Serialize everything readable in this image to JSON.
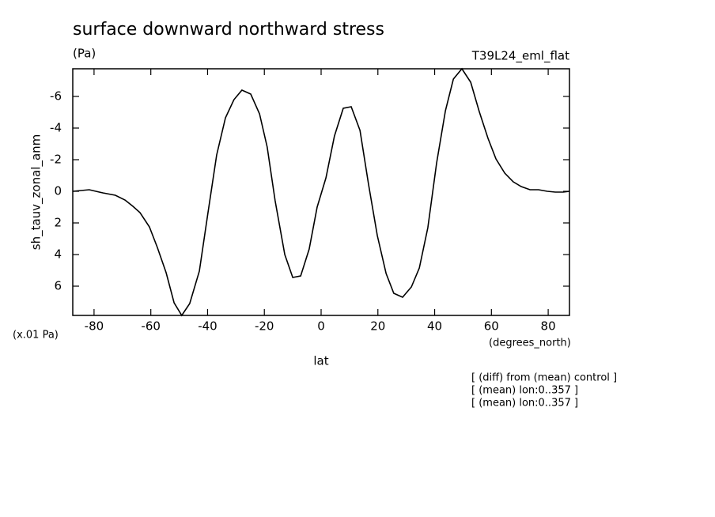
{
  "chart_data": {
    "type": "line",
    "title": "surface downward northward stress",
    "units": "(Pa)",
    "dataset": "T39L24_eml_flat",
    "y_label": "sh_tauv_zonal_anm",
    "y_units": "(x.01 Pa)",
    "x_label": "lat",
    "x_units": "(degrees_north)",
    "notes": [
      "[ (diff) from (mean) control ]",
      "[ (mean) lon:0..357 ]",
      "[ (mean) lon:0..357 ]"
    ],
    "x": [
      -87.5,
      -81.7,
      -76.9,
      -72.5,
      -69.1,
      -66.3,
      -63.8,
      -60.5,
      -57.7,
      -54.6,
      -51.8,
      -49.1,
      -46.3,
      -42.9,
      -39.9,
      -36.8,
      -33.7,
      -30.7,
      -27.9,
      -24.8,
      -21.7,
      -19.0,
      -16.2,
      -12.8,
      -10.0,
      -7.2,
      -4.2,
      -1.4,
      1.7,
      4.7,
      7.8,
      10.6,
      13.7,
      16.7,
      19.8,
      22.9,
      25.6,
      28.7,
      31.8,
      34.6,
      37.6,
      40.7,
      43.8,
      46.6,
      49.6,
      52.7,
      55.7,
      58.8,
      61.6,
      64.7,
      67.7,
      70.5,
      73.6,
      76.6,
      79.7,
      82.5,
      85.3,
      87.5
    ],
    "series": [
      {
        "color": "#000000",
        "values": [
          0,
          -0.1,
          0.1,
          0.25,
          0.55,
          0.95,
          1.35,
          2.25,
          3.55,
          5.15,
          7.05,
          7.85,
          7.1,
          5.05,
          1.4,
          -2.3,
          -4.65,
          -5.8,
          -6.4,
          -6.15,
          -4.9,
          -2.8,
          0.6,
          4.0,
          5.45,
          5.35,
          3.65,
          1,
          -0.85,
          -3.5,
          -5.25,
          -5.35,
          -3.85,
          -0.45,
          2.8,
          5.2,
          6.45,
          6.7,
          6.05,
          4.85,
          2.3,
          -1.8,
          -5.1,
          -7.1,
          -7.75,
          -6.9,
          -5.05,
          -3.35,
          -2.05,
          -1.15,
          -0.6,
          -0.3,
          -0.1,
          -0.1,
          0,
          0.05,
          0.05,
          0
        ]
      }
    ],
    "xlim": [
      -87.5,
      87.5
    ],
    "xticks": [
      -80,
      -60,
      -40,
      -20,
      0,
      20,
      40,
      60,
      80
    ],
    "ylim": [
      -7.75,
      7.85
    ],
    "yticks": [
      -6,
      -4,
      -2,
      0,
      2,
      4,
      6
    ],
    "y_inverted": true
  }
}
